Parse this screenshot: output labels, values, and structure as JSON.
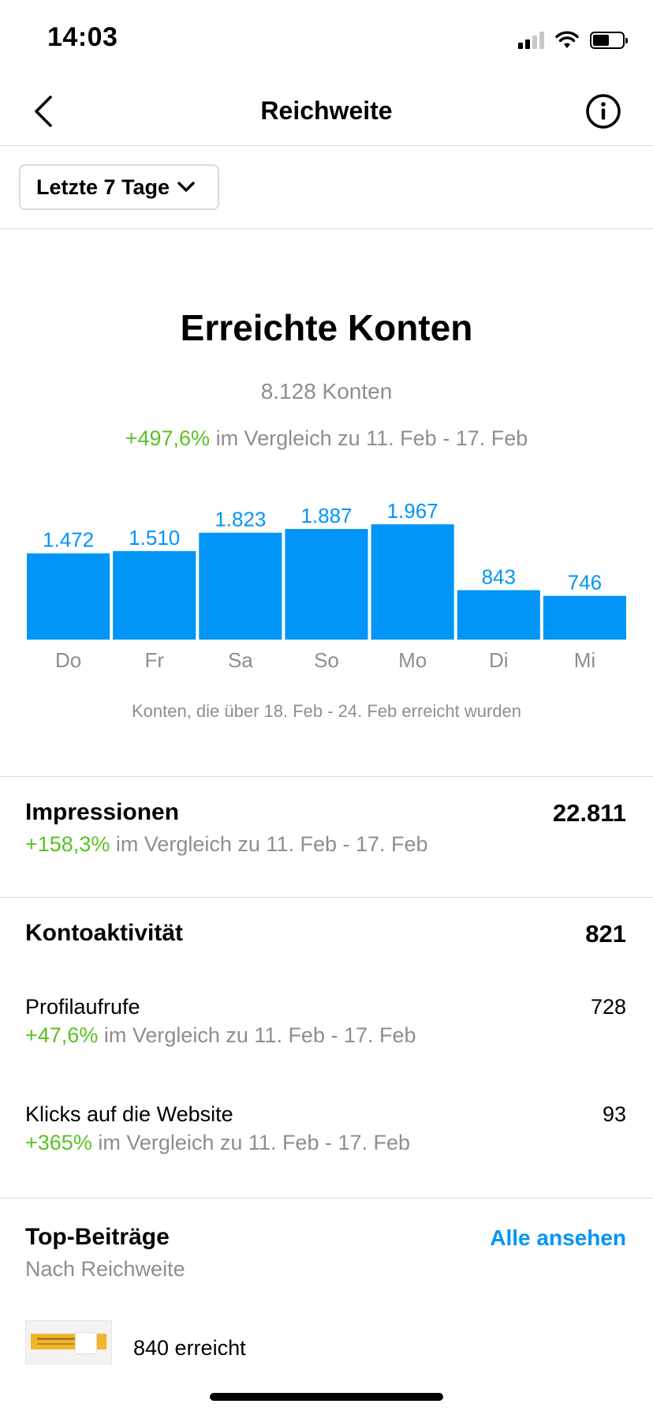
{
  "status_bar": {
    "time": "14:03",
    "icons": [
      "signal-icon",
      "wifi-icon",
      "battery-icon"
    ]
  },
  "nav": {
    "title": "Reichweite",
    "back_icon": "chevron-left-icon",
    "info_icon": "info-icon"
  },
  "filter": {
    "label": "Letzte 7 Tage",
    "icon": "chevron-down-icon"
  },
  "reach": {
    "title": "Erreichte Konten",
    "count": "8.128 Konten",
    "change": "+497,6%",
    "compare_text": " im Vergleich zu 11. Feb - 17. Feb"
  },
  "chart_data": {
    "type": "bar",
    "categories": [
      "Do",
      "Fr",
      "Sa",
      "So",
      "Mo",
      "Di",
      "Mi"
    ],
    "values": [
      1472,
      1510,
      1823,
      1887,
      1967,
      843,
      746
    ],
    "value_labels": [
      "1.472",
      "1.510",
      "1.823",
      "1.887",
      "1.967",
      "843",
      "746"
    ],
    "caption": "Konten, die über 18. Feb - 24. Feb erreicht wurden",
    "bar_color": "#0095f6"
  },
  "impressions": {
    "label": "Impressionen",
    "value": "22.811",
    "change": "+158,3%",
    "compare_text": " im Vergleich zu 11. Feb - 17. Feb"
  },
  "account_activity": {
    "label": "Kontoaktivität",
    "value": "821",
    "items": [
      {
        "label": "Profilaufrufe",
        "value": "728",
        "change": "+47,6%",
        "compare_text": " im Vergleich zu 11. Feb - 17. Feb"
      },
      {
        "label": "Klicks auf die Website",
        "value": "93",
        "change": "+365%",
        "compare_text": " im Vergleich zu 11. Feb - 17. Feb"
      }
    ]
  },
  "top_posts": {
    "title": "Top-Beiträge",
    "subtitle": "Nach Reichweite",
    "see_all": "Alle ansehen",
    "posts": [
      {
        "label": "840 erreicht"
      }
    ]
  },
  "colors": {
    "accent": "#0095f6",
    "positive": "#58c322",
    "muted": "#8e8e8e",
    "divider": "#dbdbdb"
  }
}
